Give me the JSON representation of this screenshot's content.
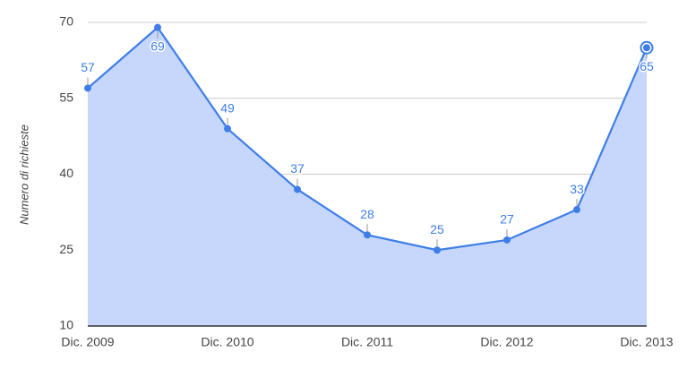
{
  "chart_data": {
    "type": "area",
    "y_label": "Numero di richieste",
    "categories": [
      "Dic. 2009",
      null,
      "Dic. 2010",
      null,
      "Dic. 2011",
      null,
      "Dic. 2012",
      null,
      "Dic. 2013"
    ],
    "values": [
      57,
      69,
      49,
      37,
      28,
      25,
      27,
      33,
      65
    ],
    "color": "#3f7ee8",
    "ylim": [
      10,
      70
    ],
    "yticks": [
      10,
      25,
      40,
      55,
      70
    ],
    "grid": true
  }
}
